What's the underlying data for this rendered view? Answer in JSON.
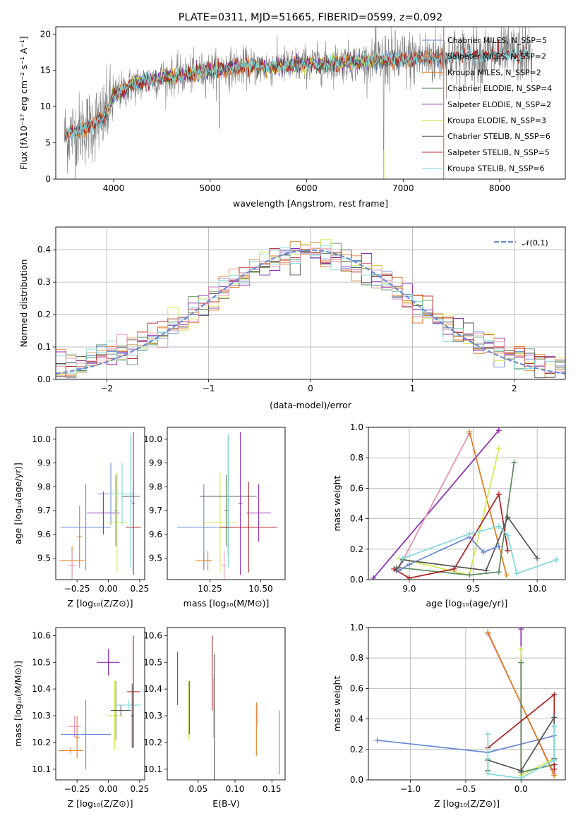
{
  "colors": {
    "chabrier_miles": "#6788d8",
    "salpeter_miles": "#e9782f",
    "kroupa_miles": "#e07b1a",
    "chabrier_elodie": "#5a8a5e",
    "salpeter_elodie": "#8e2bb3",
    "kroupa_elodie": "#d4e84a",
    "chabrier_stelib": "#555555",
    "salpeter_stelib": "#b01e1e",
    "kroupa_stelib": "#7fd8de",
    "spectrum": "#7f7f7f",
    "normal": "#6a8ad4",
    "pink": "#e88fb0"
  },
  "chart_data": [
    {
      "id": "spectrum",
      "type": "line",
      "title": "PLATE=0311, MJD=51665, FIBERID=0599, z=0.092",
      "xlabel": "wavelength [Angstrom, rest frame]",
      "ylabel": "Flux [fλ10⁻¹⁷ erg cm⁻² s⁻¹ A⁻¹]",
      "xlim": [
        3400,
        8680
      ],
      "ylim": [
        0,
        21
      ],
      "xticks": [
        "4000",
        "5000",
        "6000",
        "7000",
        "8000"
      ],
      "yticks": [
        "0",
        "5",
        "10",
        "15",
        "20"
      ],
      "legend_position": "top-right",
      "legend": [
        "Chabrier MILES, N_SSP=5",
        "Salpeter MILES, N_SSP=2",
        "Kroupa MILES, N_SSP=2",
        "Chabrier ELODIE, N_SSP=4",
        "Salpeter ELODIE, N_SSP=2",
        "Kroupa ELODIE, N_SSP=3",
        "Chabrier STELIB, N_SSP=6",
        "Salpeter STELIB, N_SSP=5",
        "Kroupa STELIB, N_SSP=6"
      ],
      "continuum": [
        [
          3500,
          6
        ],
        [
          3700,
          7
        ],
        [
          3900,
          8.5
        ],
        [
          4000,
          11.5
        ],
        [
          4200,
          13
        ],
        [
          4500,
          14
        ],
        [
          4800,
          14.5
        ],
        [
          5000,
          15
        ],
        [
          5300,
          15.5
        ],
        [
          5600,
          15.5
        ],
        [
          6000,
          15.8
        ],
        [
          6300,
          16
        ],
        [
          6600,
          16.3
        ],
        [
          7000,
          16.5
        ],
        [
          7400,
          16.8
        ],
        [
          7800,
          17
        ],
        [
          8300,
          17.3
        ]
      ]
    },
    {
      "id": "residuals",
      "type": "histogram",
      "xlabel": "(data-model)/error",
      "ylabel": "Normed distribution",
      "xlim": [
        -2.5,
        2.5
      ],
      "ylim": [
        0,
        0.47
      ],
      "xticks": [
        "−2",
        "−1",
        "0",
        "1",
        "2"
      ],
      "yticks": [
        "0.0",
        "0.1",
        "0.2",
        "0.3",
        "0.4"
      ],
      "legend": [
        "𝒩(0,1)"
      ],
      "legend_position": "top-right",
      "grid": true
    },
    {
      "id": "age_vs_Z",
      "type": "errorbar",
      "xlabel": "Z [log₁₀(Z/Z⊙)]",
      "ylabel": "age  [log₁₀(age/yr)]",
      "xlim": [
        -0.42,
        0.29
      ],
      "ylim": [
        9.41,
        10.05
      ],
      "xticks": [
        "−0.25",
        "0.00",
        "0.25"
      ],
      "xtick_values": [
        -0.25,
        0.0,
        0.25
      ],
      "yticks": [
        "9.5",
        "9.6",
        "9.7",
        "9.8",
        "9.9",
        "10.0"
      ],
      "grid": false,
      "points": [
        {
          "x": -0.29,
          "y": 9.49,
          "xe": 0.1,
          "ye": 0.06,
          "c": "kroupa_miles"
        },
        {
          "x": -0.29,
          "y": 9.47,
          "xe": 0.03,
          "ye": 0.06,
          "c": "pink"
        },
        {
          "x": -0.23,
          "y": 9.59,
          "xe": 0.02,
          "ye": 0.13,
          "c": "salpeter_miles"
        },
        {
          "x": -0.18,
          "y": 9.63,
          "xe": 0.2,
          "ye": 0.18,
          "c": "chabrier_miles"
        },
        {
          "x": -0.04,
          "y": 9.69,
          "xe": 0.13,
          "ye": 0.09,
          "c": "salpeter_elodie"
        },
        {
          "x": 0.02,
          "y": 9.77,
          "xe": 0.11,
          "ye": 0.13,
          "c": "chabrier_miles"
        },
        {
          "x": 0.07,
          "y": 9.65,
          "xe": 0.08,
          "ye": 0.21,
          "c": "kroupa_elodie"
        },
        {
          "x": 0.06,
          "y": 9.7,
          "xe": 0.01,
          "ye": 0.15,
          "c": "chabrier_elodie"
        },
        {
          "x": 0.11,
          "y": 9.77,
          "xe": 0.1,
          "ye": 0.13,
          "c": "kroupa_stelib"
        },
        {
          "x": 0.18,
          "y": 9.76,
          "xe": 0.07,
          "ye": 0.25,
          "c": "chabrier_stelib"
        },
        {
          "x": 0.2,
          "y": 9.63,
          "xe": 0.06,
          "ye": 0.19,
          "c": "salpeter_stelib"
        },
        {
          "x": 0.18,
          "y": 9.74,
          "xe": 0.01,
          "ye": 0.28,
          "c": "kroupa_stelib"
        },
        {
          "x": 0.2,
          "y": 9.73,
          "xe": 0.01,
          "ye": 0.3,
          "c": "salpeter_elodie"
        }
      ]
    },
    {
      "id": "age_vs_mass",
      "type": "errorbar",
      "xlabel": "mass [log₁₀(M/M⊙)]",
      "xlim": [
        10.04,
        10.62
      ],
      "ylim": [
        9.41,
        10.05
      ],
      "xticks": [
        "10.25",
        "10.50"
      ],
      "xtick_values": [
        10.25,
        10.5
      ],
      "yticks": [
        "9.5",
        "9.6",
        "9.7",
        "9.8",
        "9.9",
        "10.0"
      ],
      "grid": false,
      "points": [
        {
          "x": 10.22,
          "y": 9.49,
          "xe": 0.04,
          "ye": 0.03,
          "c": "kroupa_miles"
        },
        {
          "x": 10.24,
          "y": 9.49,
          "xe": 0.01,
          "ye": 0.04,
          "c": "salpeter_miles"
        },
        {
          "x": 10.22,
          "y": 9.63,
          "xe": 0.13,
          "ye": 0.18,
          "c": "chabrier_miles"
        },
        {
          "x": 10.32,
          "y": 9.47,
          "xe": 0.01,
          "ye": 0.06,
          "c": "pink"
        },
        {
          "x": 10.3,
          "y": 9.65,
          "xe": 0.08,
          "ye": 0.21,
          "c": "kroupa_elodie"
        },
        {
          "x": 10.33,
          "y": 9.7,
          "xe": 0.01,
          "ye": 0.15,
          "c": "chabrier_elodie"
        },
        {
          "x": 10.34,
          "y": 9.76,
          "xe": 0.14,
          "ye": 0.25,
          "c": "chabrier_stelib"
        },
        {
          "x": 10.34,
          "y": 9.74,
          "xe": 0.01,
          "ye": 0.28,
          "c": "kroupa_stelib"
        },
        {
          "x": 10.4,
          "y": 9.73,
          "xe": 0.01,
          "ye": 0.3,
          "c": "salpeter_elodie"
        },
        {
          "x": 10.49,
          "y": 9.69,
          "xe": 0.06,
          "ye": 0.12,
          "c": "salpeter_elodie"
        },
        {
          "x": 10.44,
          "y": 9.63,
          "xe": 0.14,
          "ye": 0.19,
          "c": "salpeter_stelib"
        }
      ]
    },
    {
      "id": "weight_vs_age",
      "type": "line",
      "xlabel": "age  [log₁₀(age/yr)]",
      "ylabel": "mass weight",
      "xlim": [
        8.68,
        10.22
      ],
      "ylim": [
        0,
        1
      ],
      "xticks": [
        "9.0",
        "9.5",
        "10.0"
      ],
      "xtick_values": [
        9.0,
        9.5,
        10.0
      ],
      "yticks": [
        "0.0",
        "0.2",
        "0.4",
        "0.6",
        "0.8",
        "1.0"
      ],
      "grid": true,
      "series": [
        {
          "c": "salpeter_elodie",
          "x": [
            8.72,
            9.7
          ],
          "y": [
            0.01,
            0.98
          ]
        },
        {
          "c": "pink",
          "x": [
            8.92,
            9.47
          ],
          "y": [
            0.08,
            0.96
          ]
        },
        {
          "c": "kroupa_miles",
          "x": [
            9.47,
            9.76
          ],
          "y": [
            0.97,
            0.03
          ]
        },
        {
          "c": "kroupa_elodie",
          "x": [
            8.92,
            9.47,
            9.7
          ],
          "y": [
            0.14,
            0.03,
            0.86
          ]
        },
        {
          "c": "chabrier_elodie",
          "x": [
            8.9,
            9.47,
            9.7,
            9.82
          ],
          "y": [
            0.08,
            0.03,
            0.05,
            0.77
          ]
        },
        {
          "c": "salpeter_stelib",
          "x": [
            8.88,
            9.0,
            9.35,
            9.7,
            9.77
          ],
          "y": [
            0.07,
            0.01,
            0.07,
            0.56,
            0.19
          ]
        },
        {
          "c": "chabrier_stelib",
          "x": [
            8.9,
            8.95,
            9.6,
            9.77,
            10.0
          ],
          "y": [
            0.06,
            0.13,
            0.06,
            0.41,
            0.14
          ]
        },
        {
          "c": "chabrier_miles",
          "x": [
            8.92,
            9.0,
            9.47,
            9.58,
            9.7
          ],
          "y": [
            0.06,
            0.1,
            0.28,
            0.18,
            0.22
          ]
        },
        {
          "c": "kroupa_stelib",
          "x": [
            8.95,
            9.47,
            9.7,
            9.77,
            9.84,
            10.15
          ],
          "y": [
            0.14,
            0.3,
            0.35,
            0.29,
            0.04,
            0.13
          ]
        }
      ]
    },
    {
      "id": "mass_vs_Z",
      "type": "errorbar",
      "xlabel": "Z [log₁₀(Z/Z⊙)]",
      "ylabel": "mass [log₁₀(M/M⊙)]",
      "xlim": [
        -0.42,
        0.29
      ],
      "ylim": [
        10.06,
        10.63
      ],
      "xticks": [
        "−0.25",
        "0.00",
        "0.25"
      ],
      "xtick_values": [
        -0.25,
        0.0,
        0.25
      ],
      "yticks": [
        "10.1",
        "10.2",
        "10.3",
        "10.4",
        "10.5",
        "10.6"
      ],
      "grid": false,
      "points": [
        {
          "x": -0.3,
          "y": 10.17,
          "xe": 0.1,
          "ye": 0.01,
          "c": "kroupa_miles"
        },
        {
          "x": -0.27,
          "y": 10.26,
          "xe": 0.05,
          "ye": 0.04,
          "c": "pink"
        },
        {
          "x": -0.25,
          "y": 10.22,
          "xe": 0.02,
          "ye": 0.08,
          "c": "salpeter_miles"
        },
        {
          "x": -0.18,
          "y": 10.23,
          "xe": 0.2,
          "ye": 0.13,
          "c": "chabrier_miles"
        },
        {
          "x": 0.0,
          "y": 10.5,
          "xe": 0.09,
          "ye": 0.05,
          "c": "salpeter_elodie"
        },
        {
          "x": 0.05,
          "y": 10.3,
          "xe": 0.06,
          "ye": 0.13,
          "c": "kroupa_elodie"
        },
        {
          "x": 0.06,
          "y": 10.32,
          "xe": 0.01,
          "ye": 0.11,
          "c": "chabrier_elodie"
        },
        {
          "x": 0.1,
          "y": 10.32,
          "xe": 0.08,
          "ye": 0.02,
          "c": "chabrier_stelib"
        },
        {
          "x": 0.16,
          "y": 10.34,
          "xe": 0.1,
          "ye": 0.02,
          "c": "kroupa_stelib"
        },
        {
          "x": 0.2,
          "y": 10.39,
          "xe": 0.05,
          "ye": 0.21,
          "c": "salpeter_stelib"
        },
        {
          "x": 0.19,
          "y": 10.3,
          "xe": 0.01,
          "ye": 0.12,
          "c": "chabrier_stelib"
        }
      ]
    },
    {
      "id": "mass_vs_ebv",
      "type": "errorbar",
      "xlabel": "E(B-V)",
      "xlim": [
        0.008,
        0.168
      ],
      "ylim": [
        10.06,
        10.63
      ],
      "xticks": [
        "0.05",
        "0.10",
        "0.15"
      ],
      "xtick_values": [
        0.05,
        0.1,
        0.15
      ],
      "yticks": [
        "10.1",
        "10.2",
        "10.3",
        "10.4",
        "10.5",
        "10.6"
      ],
      "grid": false,
      "points": [
        {
          "x": 0.022,
          "y": 10.44,
          "xe": 0.0,
          "ye": 0.1,
          "c": "salpeter_elodie"
        },
        {
          "x": 0.037,
          "y": 10.32,
          "xe": 0.0,
          "ye": 0.11,
          "c": "kroupa_elodie"
        },
        {
          "x": 0.038,
          "y": 10.33,
          "xe": 0.0,
          "ye": 0.1,
          "c": "chabrier_stelib"
        },
        {
          "x": 0.069,
          "y": 10.46,
          "xe": 0.0,
          "ye": 0.14,
          "c": "salpeter_stelib"
        },
        {
          "x": 0.071,
          "y": 10.33,
          "xe": 0.0,
          "ye": 0.11,
          "c": "kroupa_stelib"
        },
        {
          "x": 0.072,
          "y": 10.28,
          "xe": 0.0,
          "ye": 0.25,
          "c": "chabrier_stelib"
        },
        {
          "x": 0.129,
          "y": 10.25,
          "xe": 0.0,
          "ye": 0.1,
          "c": "kroupa_miles"
        },
        {
          "x": 0.13,
          "y": 10.3,
          "xe": 0.0,
          "ye": 0.04,
          "c": "pink"
        },
        {
          "x": 0.16,
          "y": 10.2,
          "xe": 0.0,
          "ye": 0.12,
          "c": "chabrier_miles"
        }
      ]
    },
    {
      "id": "weight_vs_Z",
      "type": "line",
      "xlabel": "Z [log₁₀(Z/Z⊙)]",
      "ylabel": "mass weight",
      "xlim": [
        -1.38,
        0.4
      ],
      "ylim": [
        0,
        1
      ],
      "xticks": [
        "−1.0",
        "−0.5",
        "0.0"
      ],
      "xtick_values": [
        -1.0,
        -0.5,
        0.0
      ],
      "yticks": [
        "0.0",
        "0.2",
        "0.4",
        "0.6",
        "0.8",
        "1.0"
      ],
      "grid": true,
      "series": [
        {
          "c": "chabrier_miles",
          "x": [
            -1.3,
            -0.3,
            0.3
          ],
          "y": [
            0.26,
            0.18,
            0.29
          ]
        },
        {
          "c": "pink",
          "x": [
            -0.3,
            0.3
          ],
          "y": [
            0.96,
            0.04
          ]
        },
        {
          "c": "kroupa_miles",
          "x": [
            -0.3,
            0.3
          ],
          "y": [
            0.97,
            0.03
          ]
        },
        {
          "c": "salpeter_elodie",
          "x": [
            0.0,
            0.0
          ],
          "y": [
            0.99,
            0.01
          ]
        },
        {
          "c": "kroupa_elodie",
          "x": [
            0.0,
            0.0,
            0.3
          ],
          "y": [
            0.86,
            0.03,
            0.14
          ]
        },
        {
          "c": "chabrier_elodie",
          "x": [
            0.0,
            0.0,
            0.3
          ],
          "y": [
            0.77,
            0.05,
            0.1
          ]
        },
        {
          "c": "salpeter_stelib",
          "x": [
            -0.3,
            0.3,
            0.3,
            0.3
          ],
          "y": [
            0.21,
            0.56,
            0.07,
            0.1
          ]
        },
        {
          "c": "chabrier_stelib",
          "x": [
            -0.3,
            -0.3,
            0.0,
            0.3,
            0.3
          ],
          "y": [
            0.06,
            0.13,
            0.06,
            0.41,
            0.14
          ]
        },
        {
          "c": "kroupa_stelib",
          "x": [
            -0.3,
            -0.3,
            -0.3,
            0.0,
            0.3,
            0.3
          ],
          "y": [
            0.3,
            0.14,
            0.04,
            0.01,
            0.13,
            0.35
          ]
        }
      ]
    }
  ]
}
